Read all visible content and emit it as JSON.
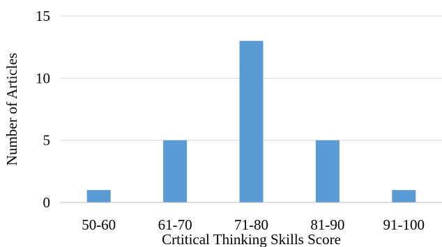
{
  "chart_data": {
    "type": "bar",
    "categories": [
      "50-60",
      "61-70",
      "71-80",
      "81-90",
      "91-100"
    ],
    "values": [
      1,
      5,
      13,
      5,
      1
    ],
    "title": "",
    "xlabel": "Crtitical Thinking Skills Score",
    "ylabel": "Number of Articles",
    "ylim": [
      0,
      15
    ],
    "yticks": [
      "0",
      "5",
      "10",
      "15"
    ],
    "grid": true,
    "legend": "none",
    "colors": {
      "bar": "#5b9bd5",
      "grid": "#d9d9d9",
      "text": "#000000"
    }
  }
}
